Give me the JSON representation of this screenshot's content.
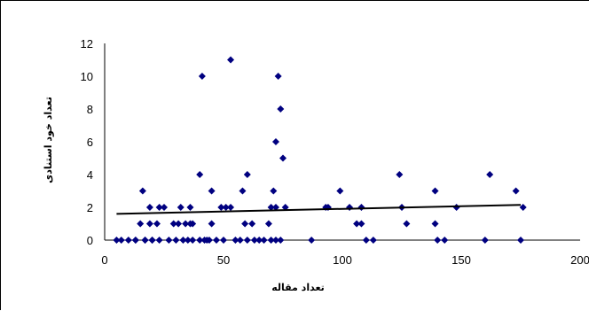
{
  "chart_data": {
    "type": "scatter",
    "title": "",
    "xlabel": "تعداد مقاله",
    "ylabel": "تعداد خود استنادی",
    "xlim": [
      0,
      200
    ],
    "ylim": [
      0,
      12
    ],
    "xticks": [
      0,
      50,
      100,
      150,
      200
    ],
    "yticks": [
      0,
      2,
      4,
      6,
      8,
      10,
      12
    ],
    "grid": false,
    "legend": "none",
    "marker": "diamond",
    "marker_color": "#000080",
    "trendline": {
      "type": "linear",
      "x": [
        5,
        175
      ],
      "y": [
        1.6,
        2.15
      ],
      "color": "#000000"
    },
    "series": [
      {
        "x": [
          5,
          7,
          10,
          13,
          13,
          17,
          17,
          20,
          20,
          23,
          27,
          30,
          33,
          37,
          40,
          42,
          44,
          47,
          50,
          57,
          60,
          63,
          67,
          70,
          72,
          74,
          87,
          110,
          113,
          140,
          143,
          160,
          175,
          43,
          35,
          55,
          65,
          15,
          19,
          22,
          29,
          31,
          34,
          36,
          37,
          45,
          59,
          62,
          69,
          106,
          108,
          127,
          139,
          19,
          25,
          32,
          36,
          49,
          51,
          53,
          70,
          72,
          93,
          94,
          103,
          108,
          125,
          148,
          176,
          23,
          71,
          99,
          139,
          173,
          45,
          58,
          16,
          40,
          124,
          162,
          60,
          41,
          73,
          53,
          72,
          74,
          75,
          76
        ],
        "y": [
          0,
          0,
          0,
          0,
          0,
          0,
          0,
          0,
          0,
          0,
          0,
          0,
          0,
          0,
          0,
          0,
          0,
          0,
          0,
          0,
          0,
          0,
          0,
          0,
          0,
          0,
          0,
          0,
          0,
          0,
          0,
          0,
          0,
          0,
          0,
          0,
          0,
          1,
          1,
          1,
          1,
          1,
          1,
          1,
          1,
          1,
          1,
          1,
          1,
          1,
          1,
          1,
          1,
          2,
          2,
          2,
          2,
          2,
          2,
          2,
          2,
          2,
          2,
          2,
          2,
          2,
          2,
          2,
          2,
          2,
          3,
          3,
          3,
          3,
          3,
          3,
          3,
          4,
          4,
          4,
          4,
          10,
          10,
          11,
          6,
          8,
          5,
          2
        ]
      }
    ]
  }
}
